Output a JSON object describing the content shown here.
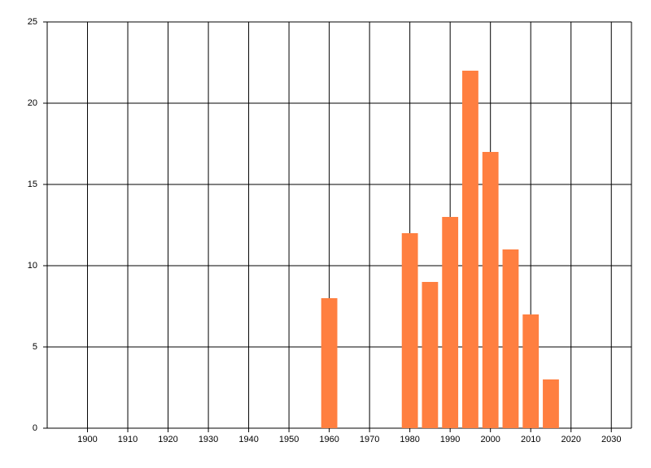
{
  "chart_data": {
    "type": "bar",
    "x": [
      1960,
      1980,
      1985,
      1990,
      1995,
      2000,
      2005,
      2010,
      2015
    ],
    "values": [
      8,
      12,
      9,
      13,
      22,
      17,
      11,
      7,
      3
    ],
    "color": "#ff7f40",
    "xlim": [
      1890,
      2035
    ],
    "xticks": [
      1900,
      1910,
      1920,
      1930,
      1940,
      1950,
      1960,
      1970,
      1980,
      1990,
      2000,
      2010,
      2020,
      2030
    ],
    "ylim": [
      0,
      25
    ],
    "yticks": [
      0,
      5,
      10,
      15,
      20,
      25
    ],
    "grid": true
  }
}
